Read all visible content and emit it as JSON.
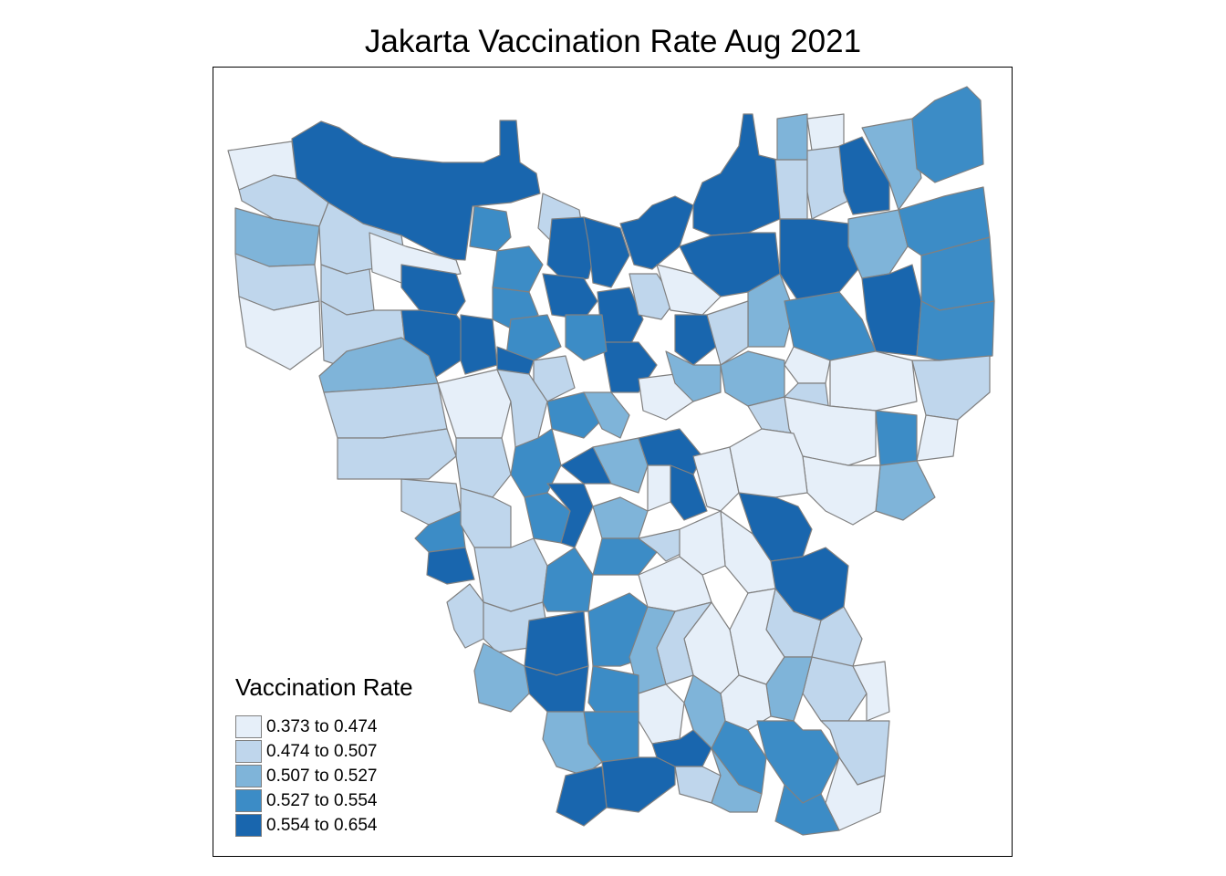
{
  "map": {
    "title": "Jakarta Vaccination Rate Aug 2021",
    "border_color": "#808080",
    "legend": {
      "title": "Vaccination Rate",
      "placement": "bottom-left",
      "classes": [
        {
          "label": "0.373 to 0.474",
          "color": "#e6eff9"
        },
        {
          "label": "0.474 to 0.507",
          "color": "#bfd6ec"
        },
        {
          "label": "0.507 to 0.527",
          "color": "#7fb4d9"
        },
        {
          "label": "0.527 to 0.554",
          "color": "#3c8cc6"
        },
        {
          "label": "0.554 to 0.654",
          "color": "#1966ae"
        }
      ]
    }
  }
}
